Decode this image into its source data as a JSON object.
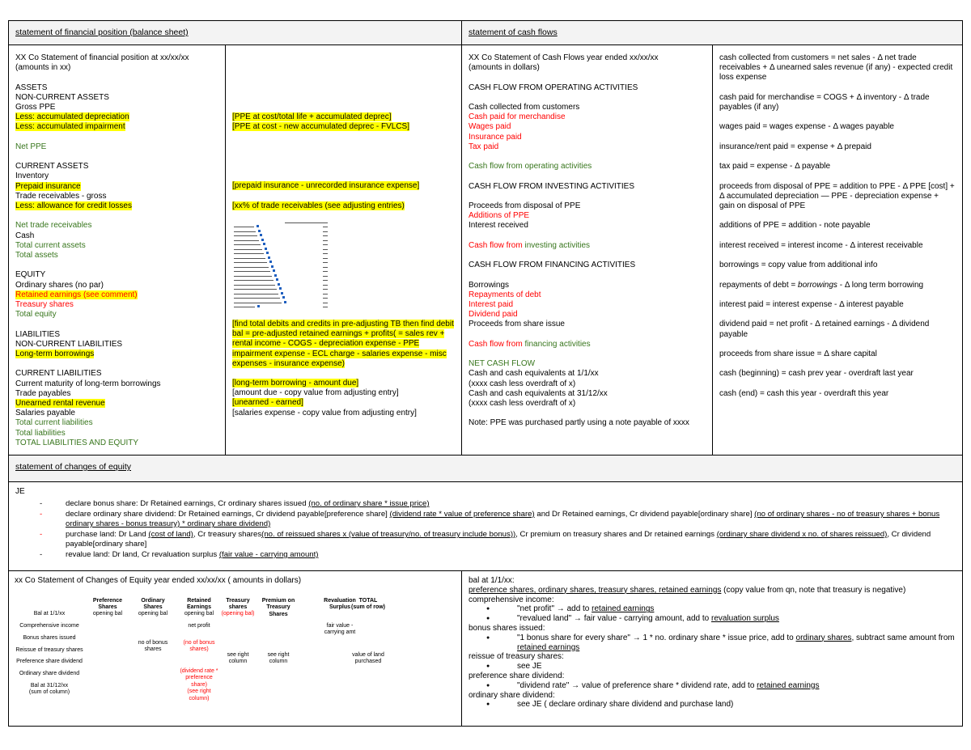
{
  "headers": {
    "balance_sheet": "statement of financial position (balance sheet)",
    "cash_flows": "statement of cash flows",
    "changes_equity": "statement of changes of equity"
  },
  "colors": {
    "red": "#ff0000",
    "green": "#38761d",
    "highlight": "#ffff00",
    "header_bg": "#f3f3f3"
  },
  "balance_sheet": [
    [
      {
        "t": "XX Co Statement of financial position at xx/xx/xx"
      }
    ],
    [
      {
        "t": "(amounts in xx)"
      }
    ],
    [],
    [
      {
        "t": "ASSETS"
      }
    ],
    [
      {
        "t": "NON-CURRENT ASSETS"
      }
    ],
    [
      {
        "t": "Gross PPE"
      }
    ],
    [
      {
        "t": "Less: accumulated depreciation",
        "s": "y"
      }
    ],
    [
      {
        "t": "Less: accumulated impairment",
        "s": "y"
      }
    ],
    [],
    [
      {
        "t": "Net PPE",
        "s": "g"
      }
    ],
    [],
    [
      {
        "t": "CURRENT ASSETS"
      }
    ],
    [
      {
        "t": "Inventory"
      }
    ],
    [
      {
        "t": "Prepaid insurance",
        "s": "y"
      }
    ],
    [
      {
        "t": "Trade receivables - gross"
      }
    ],
    [
      {
        "t": "Less: allowance for credit losses",
        "s": "y"
      }
    ],
    [],
    [
      {
        "t": "Net trade receivables",
        "s": "g"
      }
    ],
    [
      {
        "t": "Cash"
      }
    ],
    [
      {
        "t": "Total current assets",
        "s": "g"
      }
    ],
    [
      {
        "t": "Total assets",
        "s": "g"
      }
    ],
    [],
    [
      {
        "t": "EQUITY"
      }
    ],
    [
      {
        "t": "Ordinary shares (no par)"
      }
    ],
    [
      {
        "t": "Retained earnings (see comment)",
        "s": "r y"
      }
    ],
    [
      {
        "t": "Treasury shares",
        "s": "r"
      }
    ],
    [
      {
        "t": "Total equity",
        "s": "g"
      }
    ],
    [],
    [
      {
        "t": "LIABILITIES"
      }
    ],
    [
      {
        "t": "NON-CURRENT LIABILITIES"
      }
    ],
    [
      {
        "t": "Long-term borrowings",
        "s": "y"
      }
    ],
    [],
    [
      {
        "t": "CURRENT LIABILITIES"
      }
    ],
    [
      {
        "t": "Current maturity of long-term borrowings"
      }
    ],
    [
      {
        "t": "Trade payables"
      }
    ],
    [
      {
        "t": "Unearned rental revenue",
        "s": "y"
      }
    ],
    [
      {
        "t": "Salaries payable"
      }
    ],
    [
      {
        "t": "Total current liabilities",
        "s": "g"
      }
    ],
    [
      {
        "t": "Total liabilities",
        "s": "g"
      }
    ],
    [
      {
        "t": "TOTAL LIABILITIES AND EQUITY",
        "s": "g"
      }
    ]
  ],
  "balance_notes": {
    "top": [
      [],
      [],
      [],
      [],
      [],
      [],
      [
        {
          "t": "[PPE at cost/total life + accumulated deprec]",
          "s": "y"
        }
      ],
      [
        {
          "t": "[PPE at cost - new accumulated deprec - FVLCS]",
          "s": "y"
        }
      ],
      [],
      [],
      [],
      [],
      [],
      [
        {
          "t": "[prepaid insurance - unrecorded insurance expense]",
          "s": "y"
        }
      ],
      [],
      [
        {
          "t": "[xx% of trade receivables (see adjusting entries)",
          "s": "y"
        }
      ]
    ],
    "retained": "[find total debits and credits in pre-adjusting TB then find debit bal = pre-adjusted retained earnings + profits( = sales rev + rental income - COGS - depreciation expense - PPE impairment expense - ECL charge - salaries expense - misc expenses - insurance expense)",
    "bottom": [
      [
        {
          "t": "[long-term borrowing - amount due]",
          "s": "y"
        }
      ],
      [
        {
          "t": "[amount due - copy value from adjusting entry]"
        }
      ],
      [
        {
          "t": "[unearned - earned]",
          "s": "y"
        }
      ],
      [
        {
          "t": "[salaries expense - copy value from adjusting entry]"
        }
      ]
    ]
  },
  "cash_flows": [
    [
      {
        "t": "XX Co Statement of Cash Flows year ended xx/xx/xx"
      }
    ],
    [
      {
        "t": "(amounts in dollars)"
      }
    ],
    [],
    [
      {
        "t": "CASH FLOW FROM OPERATING ACTIVITIES"
      }
    ],
    [],
    [
      {
        "t": "Cash collected from customers"
      }
    ],
    [
      {
        "t": "Cash paid for merchandise",
        "s": "r"
      }
    ],
    [
      {
        "t": "Wages paid",
        "s": "r"
      }
    ],
    [
      {
        "t": "Insurance paid",
        "s": "r"
      }
    ],
    [
      {
        "t": "Tax paid",
        "s": "r"
      }
    ],
    [],
    [
      {
        "t": "Cash flow from operating activities",
        "s": "g"
      }
    ],
    [],
    [
      {
        "t": "CASH FLOW FROM INVESTING ACTIVITIES"
      }
    ],
    [],
    [
      {
        "t": "Proceeds from disposal of PPE"
      }
    ],
    [
      {
        "t": "Additions of PPE",
        "s": "r"
      }
    ],
    [
      {
        "t": "Interest received"
      }
    ],
    [],
    [
      {
        "t": "Cash flow from ",
        "s": "r"
      },
      {
        "t": "investing activities",
        "s": "g"
      }
    ],
    [],
    [
      {
        "t": "CASH FLOW FROM FINANCING ACTIVITIES"
      }
    ],
    [],
    [
      {
        "t": "Borrowings"
      }
    ],
    [
      {
        "t": "Repayments of debt",
        "s": "r"
      }
    ],
    [
      {
        "t": "Interest paid",
        "s": "r"
      }
    ],
    [
      {
        "t": "Dividend paid",
        "s": "r"
      }
    ],
    [
      {
        "t": "Proceeds from share issue"
      }
    ],
    [],
    [
      {
        "t": "Cash flow from ",
        "s": "r"
      },
      {
        "t": "financing activities",
        "s": "g"
      }
    ],
    [],
    [
      {
        "t": "NET CASH FLOW",
        "s": "g"
      }
    ],
    [
      {
        "t": "Cash and cash equivalents at 1/1/xx"
      }
    ],
    [
      {
        "t": "(xxxx cash less overdraft of x)"
      }
    ],
    [
      {
        "t": "Cash and cash equivalents at 31/12/xx"
      }
    ],
    [
      {
        "t": "(xxxx cash less overdraft of x)"
      }
    ],
    [],
    [
      {
        "t": "Note: PPE was purchased partly using a note payable of xxxx"
      }
    ]
  ],
  "cash_formulas": [
    [
      {
        "t": "cash collected from customers = net sales - Δ net trade receivables + Δ unearned sales revenue (if any) - expected credit loss expense"
      }
    ],
    [
      {
        "t": "cash paid for merchandise  = COGS +  Δ inventory - Δ trade payables (if any)"
      }
    ],
    [
      {
        "t": "wages paid = wages expense - Δ wages payable"
      }
    ],
    [
      {
        "t": "insurance/rent paid = expense + Δ prepaid"
      }
    ],
    [
      {
        "t": "tax paid = expense - Δ payable"
      }
    ],
    [
      {
        "t": "proceeds from disposal of PPE = addition to PPE - Δ PPE [cost] + Δ accumulated depreciation — PPE - depreciation expense + gain on disposal of PPE"
      }
    ],
    [
      {
        "t": "additions of PPE = addition - note payable"
      }
    ],
    [
      {
        "t": "interest received = interest income - Δ interest receivable"
      }
    ],
    [
      {
        "t": "borrowings = copy value from additional info"
      }
    ],
    [
      {
        "t": "repayments of debt = "
      },
      {
        "t": "borrowings",
        "s": "i"
      },
      {
        "t": " - Δ long term borrowing"
      }
    ],
    [
      {
        "t": "interest paid = interest expense - Δ interest payable"
      }
    ],
    [
      {
        "t": "dividend paid = net profit - Δ retained earnings - Δ dividend payable"
      }
    ],
    [
      {
        "t": "proceeds from share issue = Δ share capital"
      }
    ],
    [
      {
        "t": "cash (beginning) = cash prev year - overdraft last year"
      }
    ],
    [
      {
        "t": "cash (end) = cash this year - overdraft this year"
      }
    ]
  ],
  "je": {
    "title": "JE",
    "items": [
      {
        "dash": "black",
        "segs": [
          {
            "t": "declare bonus share: Dr Retained earnings, Cr ordinary shares issued "
          },
          {
            "t": "(no. of ordinary share * issue price)",
            "s": "u"
          }
        ]
      },
      {
        "dash": "red",
        "segs": [
          {
            "t": "declare ordinary share dividend: Dr Retained earnings, Cr dividend payable[preference share] "
          },
          {
            "t": "(dividend rate * value of preference share)",
            "s": "u"
          },
          {
            "t": " and Dr Retained earnings, Cr dividend payable[ordinary share] "
          },
          {
            "t": "(no of ordinary shares - no of treasury shares + bonus ordinary shares - bonus treasury) * ordinary share dividend)",
            "s": "u"
          }
        ]
      },
      {
        "dash": "red",
        "segs": [
          {
            "t": "purchase land: Dr Land "
          },
          {
            "t": "(cost of land)",
            "s": "u"
          },
          {
            "t": ", Cr treasury shares"
          },
          {
            "t": "(no. of reissued shares x (value of treasury/no. of treasury include bonus))",
            "s": "u"
          },
          {
            "t": ", Cr premium on treasury shares and Dr retained earnings "
          },
          {
            "t": "(ordinary share dividend x no. of shares reissued)",
            "s": "u"
          },
          {
            "t": ", Cr dividend payable[ordinary share]"
          }
        ]
      },
      {
        "dash": "black",
        "segs": [
          {
            "t": "revalue land: Dr land, Cr revaluation surplus "
          },
          {
            "t": "(fair value - carrying amount)",
            "s": "u"
          }
        ]
      }
    ]
  },
  "equity_table": {
    "title": "xx Co Statement of Changes of Equity year ended xx/xx/xx ( amounts in dollars)",
    "rows": [
      "Bal at 1/1/xx",
      "Comprehensive income",
      "Bonus shares issued",
      "Reissue of treasury shares",
      "Preference share dividend",
      "Ordinary share dividend",
      "Bal at 31/12/xx\n(sum of column)"
    ],
    "columns": [
      {
        "header": "Preference\nShares",
        "opening": "opening bal"
      },
      {
        "header": "Ordinary\nShares",
        "opening": "opening bal",
        "bonus": "no of bonus\nshares"
      },
      {
        "header": "Retained\nEarnings",
        "opening": "opening bal",
        "comprehensive": "net profit",
        "bonus": "(no of bonus\nshares)",
        "ordinary_div": "(dividend rate *\npreference\nshare)\n(see right\ncolumn)"
      },
      {
        "header": "Treasury\nshares",
        "opening": "(opening bal)",
        "reissue": "see right\ncolumn"
      },
      {
        "header": "Premium on\nTreasury\nShares",
        "reissue": "see right\ncolumn"
      },
      {
        "header": "Revaluation\nSurplus",
        "comprehensive": "fair value -\ncarrying amt"
      },
      {
        "header": "TOTAL\n(sum of row)",
        "reissue": "value of land\npurchased"
      }
    ]
  },
  "equity_notes": [
    {
      "type": "head",
      "segs": [
        {
          "t": "bal at 1/1/xx:"
        }
      ]
    },
    {
      "type": "head",
      "segs": [
        {
          "t": "preference shares, ordinary shares, treasury shares, retained earnings",
          "s": "u"
        },
        {
          "t": " (copy value from qn, note that treasury is negative)"
        }
      ]
    },
    {
      "type": "head",
      "segs": [
        {
          "t": "comprehensive income:"
        }
      ]
    },
    {
      "type": "bul",
      "segs": [
        {
          "t": "\"net profit\" → add to "
        },
        {
          "t": "retained earnings",
          "s": "u"
        }
      ]
    },
    {
      "type": "bul",
      "segs": [
        {
          "t": "\"revalued land\" → fair value - carrying amount, add to "
        },
        {
          "t": "revaluation surplus",
          "s": "u"
        }
      ]
    },
    {
      "type": "head",
      "segs": [
        {
          "t": "bonus shares issued:"
        }
      ]
    },
    {
      "type": "bul",
      "segs": [
        {
          "t": "\"1 bonus share for every share\" → 1 * no. ordinary share * issue price, add to "
        },
        {
          "t": "ordinary shares",
          "s": "u"
        },
        {
          "t": ", subtract same amount from "
        },
        {
          "t": "retained earnings",
          "s": "u"
        }
      ]
    },
    {
      "type": "head",
      "segs": [
        {
          "t": "reissue of treasury shares:"
        }
      ]
    },
    {
      "type": "bul",
      "segs": [
        {
          "t": "see JE"
        }
      ]
    },
    {
      "type": "head",
      "segs": [
        {
          "t": "preference share dividend:"
        }
      ]
    },
    {
      "type": "bul",
      "segs": [
        {
          "t": "\"dividend rate\" → value of preference share * dividend rate, add to "
        },
        {
          "t": "retained earnings",
          "s": "u"
        }
      ]
    },
    {
      "type": "head",
      "segs": [
        {
          "t": "ordinary share dividend:"
        }
      ]
    },
    {
      "type": "bul",
      "segs": [
        {
          "t": "see JE ( declare ordinary share dividend and purchase land)"
        }
      ]
    }
  ]
}
